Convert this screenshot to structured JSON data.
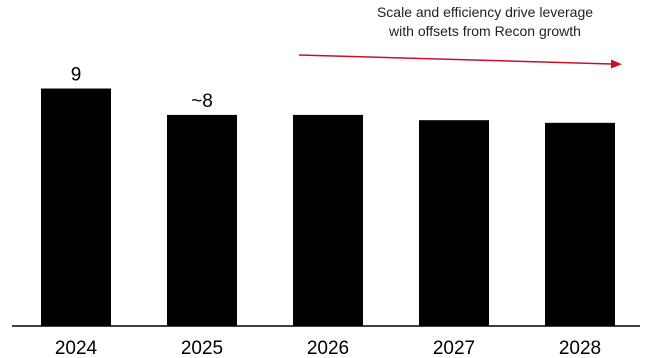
{
  "chart_data": {
    "type": "bar",
    "categories": [
      "2024",
      "2025",
      "2026",
      "2027",
      "2028"
    ],
    "values": [
      9,
      8,
      8,
      7.8,
      7.7
    ],
    "data_labels": [
      "9",
      "~8",
      "",
      "",
      ""
    ],
    "ylim": [
      0,
      11.9
    ],
    "grid": false,
    "bar_color": "#000000",
    "annotation": {
      "lines": [
        "Scale and efficiency drive leverage",
        "with offsets from Recon growth"
      ],
      "arrow_color": "#c8102e",
      "arrow_direction": "downward-trend"
    }
  }
}
